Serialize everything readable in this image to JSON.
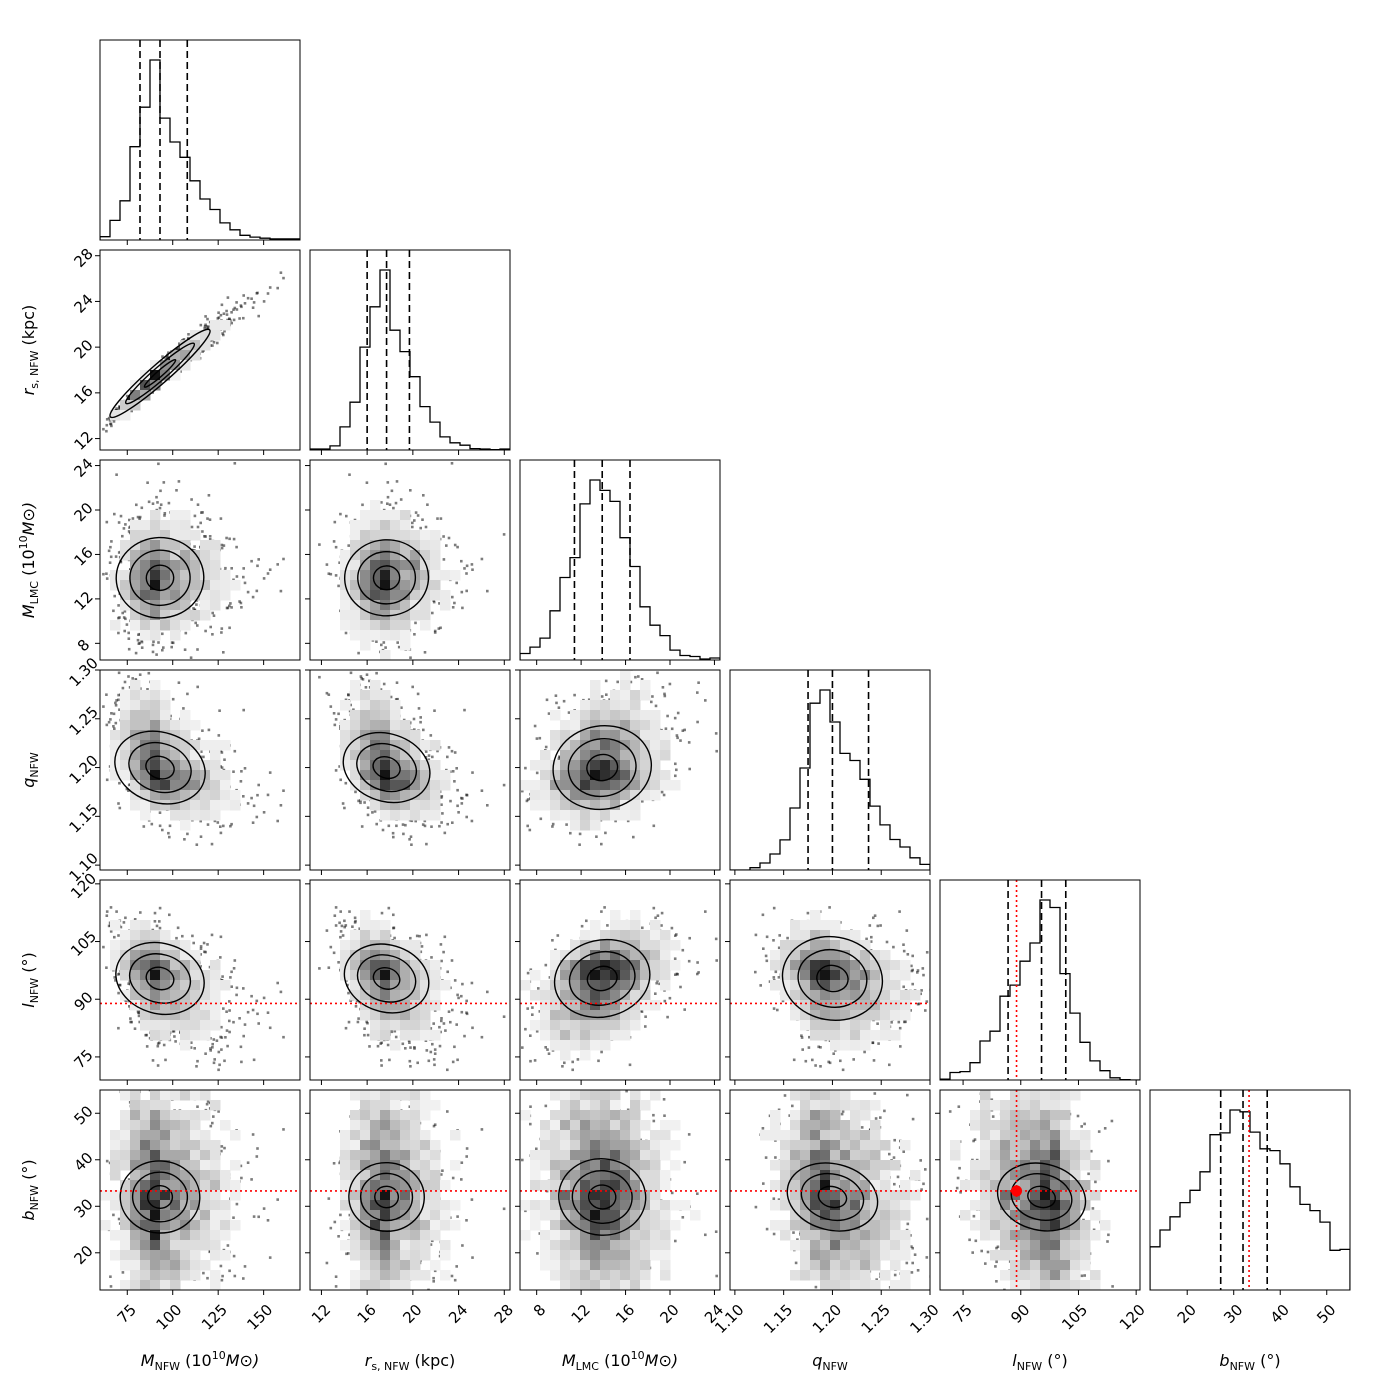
{
  "chart_data": {
    "type": "corner",
    "title": "",
    "parameters": [
      {
        "id": "M_NFW",
        "label_main": "M",
        "label_sub": "NFW",
        "label_rest": " (10",
        "label_sup": "10",
        "label_tail": "M⊙)",
        "range": [
          60,
          170
        ],
        "ticks": [
          75,
          100,
          125,
          150
        ],
        "tick_labels": [
          "75",
          "100",
          "125",
          "150"
        ],
        "median": 93,
        "q16": 82,
        "q84": 108,
        "truth": null
      },
      {
        "id": "rs_NFW",
        "label_main": "r",
        "label_sub": "s, NFW",
        "label_rest": " (kpc)",
        "label_sup": "",
        "label_tail": "",
        "range": [
          11,
          28.5
        ],
        "ticks": [
          12,
          16,
          20,
          24,
          28
        ],
        "tick_labels": [
          "12",
          "16",
          "20",
          "24",
          "28"
        ],
        "median": 17.7,
        "q16": 16,
        "q84": 19.7,
        "truth": null
      },
      {
        "id": "M_LMC",
        "label_main": "M",
        "label_sub": "LMC",
        "label_rest": " (10",
        "label_sup": "10",
        "label_tail": "M⊙)",
        "range": [
          6.5,
          24.5
        ],
        "ticks": [
          8,
          12,
          16,
          20,
          24
        ],
        "tick_labels": [
          "8",
          "12",
          "16",
          "20",
          "24"
        ],
        "median": 13.9,
        "q16": 11.4,
        "q84": 16.4,
        "truth": null
      },
      {
        "id": "q_NFW",
        "label_main": "q",
        "label_sub": "NFW",
        "label_rest": "",
        "label_sup": "",
        "label_tail": "",
        "range": [
          1.095,
          1.3
        ],
        "ticks": [
          1.1,
          1.15,
          1.2,
          1.25,
          1.3
        ],
        "tick_labels": [
          "1.10",
          "1.15",
          "1.20",
          "1.25",
          "1.30"
        ],
        "median": 1.2,
        "q16": 1.175,
        "q84": 1.237,
        "truth": null
      },
      {
        "id": "l_NFW",
        "label_main": "l",
        "label_sub": "NFW",
        "label_rest": " (°)",
        "label_sup": "",
        "label_tail": "",
        "range": [
          69,
          121
        ],
        "ticks": [
          75,
          90,
          105,
          120
        ],
        "tick_labels": [
          "75",
          "90",
          "105",
          "120"
        ],
        "median": 95.4,
        "q16": 86.7,
        "q84": 101.7,
        "truth": 88.9
      },
      {
        "id": "b_NFW",
        "label_main": "b",
        "label_sub": "NFW",
        "label_rest": " (°)",
        "label_sup": "",
        "label_tail": "",
        "range": [
          12,
          55
        ],
        "ticks": [
          20,
          30,
          40,
          50
        ],
        "tick_labels": [
          "20",
          "30",
          "40",
          "50"
        ],
        "median": 32,
        "q16": 27.2,
        "q84": 37.2,
        "truth": 33.3
      }
    ],
    "correlations": [
      [
        1.0,
        0.98,
        0.05,
        -0.45,
        -0.4,
        -0.1
      ],
      [
        0.98,
        1.0,
        0.05,
        -0.42,
        -0.38,
        -0.08
      ],
      [
        0.05,
        0.05,
        1.0,
        0.25,
        0.38,
        -0.15
      ],
      [
        -0.45,
        -0.42,
        0.25,
        1.0,
        -0.3,
        -0.55
      ],
      [
        -0.4,
        -0.38,
        0.38,
        -0.3,
        1.0,
        -0.5
      ],
      [
        -0.1,
        -0.08,
        -0.15,
        -0.55,
        -0.5,
        1.0
      ]
    ],
    "skew": [
      0.8,
      0.7,
      0.3,
      0.3,
      0.0,
      0.0
    ],
    "truth_color": "#ff0000",
    "line_color": "#000000"
  }
}
